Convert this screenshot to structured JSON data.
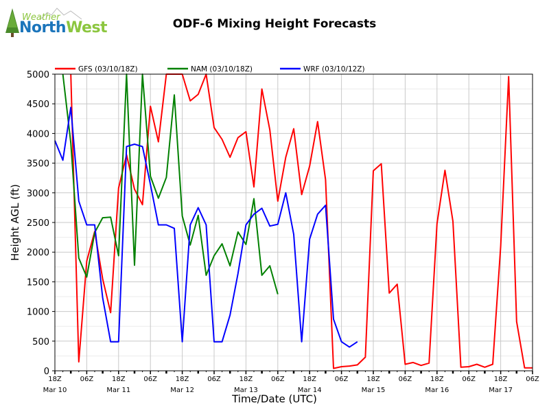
{
  "logo": {
    "line1": "Weather",
    "line2a": "North",
    "line2b": "West"
  },
  "chart_data": {
    "type": "line",
    "title": "ODF-6 Mixing Height Forecasts",
    "xlabel": "Time/Date (UTC)",
    "ylabel": "Height AGL (ft)",
    "ylim": [
      0,
      5000
    ],
    "xlim": [
      0,
      180
    ],
    "x_unit": "hours since Mar 10 18Z",
    "yticks": [
      0,
      500,
      1000,
      1500,
      2000,
      2500,
      3000,
      3500,
      4000,
      4500,
      5000
    ],
    "xticks": [
      {
        "h": 0,
        "label": "18Z"
      },
      {
        "h": 12,
        "label": "06Z"
      },
      {
        "h": 24,
        "label": "18Z"
      },
      {
        "h": 36,
        "label": "06Z"
      },
      {
        "h": 48,
        "label": "18Z"
      },
      {
        "h": 60,
        "label": "06Z"
      },
      {
        "h": 72,
        "label": "18Z"
      },
      {
        "h": 84,
        "label": "06Z"
      },
      {
        "h": 96,
        "label": "18Z"
      },
      {
        "h": 108,
        "label": "06Z"
      },
      {
        "h": 120,
        "label": "18Z"
      },
      {
        "h": 132,
        "label": "06Z"
      },
      {
        "h": 144,
        "label": "18Z"
      },
      {
        "h": 156,
        "label": "06Z"
      },
      {
        "h": 168,
        "label": "18Z"
      },
      {
        "h": 180,
        "label": "06Z"
      }
    ],
    "date_labels": [
      {
        "h": 0,
        "label": "Mar 10"
      },
      {
        "h": 24,
        "label": "Mar 11"
      },
      {
        "h": 48,
        "label": "Mar 12"
      },
      {
        "h": 72,
        "label": "Mar 13"
      },
      {
        "h": 96,
        "label": "Mar 14"
      },
      {
        "h": 120,
        "label": "Mar 15"
      },
      {
        "h": 144,
        "label": "Mar 16"
      },
      {
        "h": 168,
        "label": "Mar 17"
      }
    ],
    "series": [
      {
        "name": "GFS (03/10/18Z)",
        "color": "#ff0000",
        "x": [
          6,
          9,
          12,
          15,
          18,
          21,
          24,
          27,
          30,
          33,
          36,
          39,
          42,
          45,
          48,
          51,
          54,
          57,
          60,
          63,
          66,
          69,
          72,
          75,
          78,
          81,
          84,
          87,
          90,
          93,
          96,
          99,
          102,
          105,
          108,
          111,
          114,
          117,
          120,
          123,
          126,
          129,
          132,
          135,
          138,
          141,
          144,
          147,
          150,
          153,
          156,
          159,
          162,
          165,
          168,
          171,
          174,
          177,
          180
        ],
        "values": [
          5000,
          150,
          1850,
          2350,
          1550,
          980,
          3080,
          3640,
          3060,
          2800,
          4460,
          3860,
          5000,
          5000,
          5000,
          4550,
          4660,
          5000,
          4100,
          3900,
          3600,
          3930,
          4030,
          3100,
          4750,
          4060,
          2860,
          3600,
          4080,
          2970,
          3450,
          4200,
          3220,
          40,
          70,
          80,
          100,
          230,
          3370,
          3490,
          1310,
          1460,
          110,
          140,
          90,
          130,
          2480,
          3380,
          2520,
          60,
          70,
          110,
          60,
          110,
          2100,
          4960,
          830,
          50,
          50
        ]
      },
      {
        "name": "NAM (03/10/18Z)",
        "color": "#008000",
        "x": [
          3,
          6,
          9,
          12,
          15,
          18,
          21,
          24,
          27,
          30,
          33,
          36,
          39,
          42,
          45,
          48,
          51,
          54,
          57,
          60,
          63,
          66,
          69,
          72,
          75,
          78,
          81,
          84
        ],
        "values": [
          5000,
          3840,
          1900,
          1580,
          2330,
          2580,
          2590,
          1940,
          5000,
          1780,
          5000,
          3280,
          2910,
          3260,
          4650,
          2610,
          2120,
          2620,
          1610,
          1940,
          2140,
          1770,
          2340,
          2130,
          2900,
          1610,
          1770,
          1290
        ]
      },
      {
        "name": "WRF (03/10/12Z)",
        "color": "#0000ff",
        "x": [
          0,
          3,
          6,
          9,
          12,
          15,
          18,
          21,
          24,
          27,
          30,
          33,
          36,
          39,
          42,
          45,
          48,
          51,
          54,
          57,
          60,
          63,
          66,
          69,
          72,
          75,
          78,
          81,
          84,
          87,
          90,
          93,
          96,
          99,
          102,
          105,
          108,
          111,
          114
        ],
        "values": [
          3880,
          3550,
          4440,
          2860,
          2460,
          2460,
          1230,
          490,
          490,
          3780,
          3820,
          3780,
          3140,
          2460,
          2460,
          2400,
          490,
          2460,
          2750,
          2460,
          490,
          490,
          940,
          1640,
          2460,
          2640,
          2740,
          2440,
          2470,
          3000,
          2300,
          490,
          2220,
          2640,
          2790,
          870,
          490,
          400,
          490
        ]
      }
    ]
  }
}
